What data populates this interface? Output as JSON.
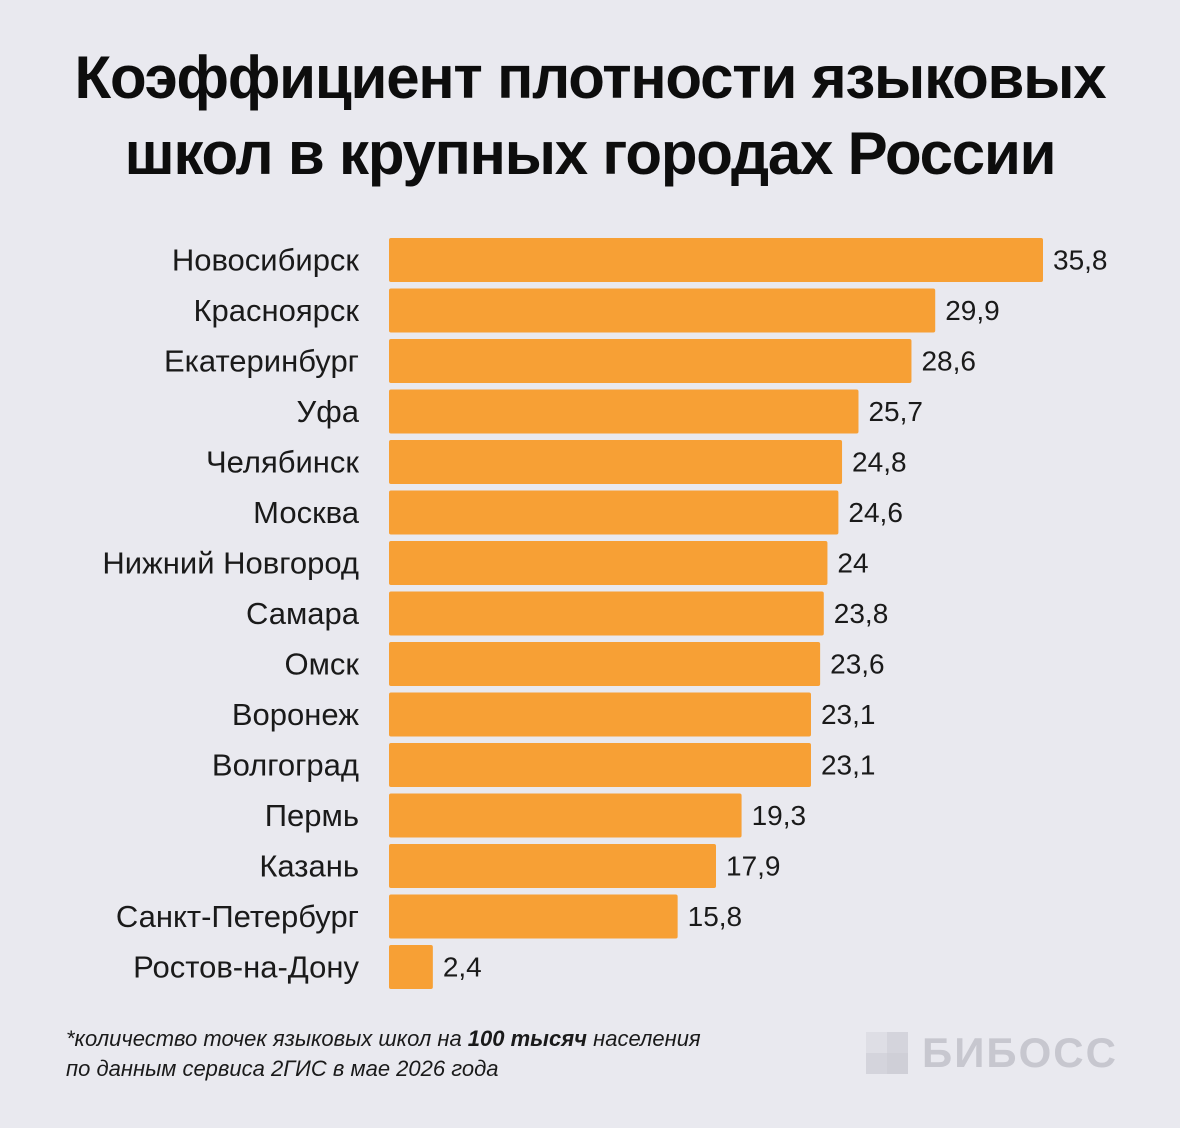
{
  "header": {
    "title_line1": "Коэффициент плотности языковых",
    "title_line2": "школ в крупных городах России"
  },
  "chart_data": {
    "type": "bar",
    "orientation": "horizontal",
    "categories": [
      "Новосибирск",
      "Красноярск",
      "Екатеринбург",
      "Уфа",
      "Челябинск",
      "Москва",
      "Нижний Новгород",
      "Самара",
      "Омск",
      "Воронеж",
      "Волгоград",
      "Пермь",
      "Казань",
      "Санкт-Петербург",
      "Ростов-на-Дону"
    ],
    "values": [
      35.8,
      29.9,
      28.6,
      25.7,
      24.8,
      24.6,
      24,
      23.8,
      23.6,
      23.1,
      23.1,
      19.3,
      17.9,
      15.8,
      2.4
    ],
    "value_labels": [
      "35,8",
      "29,9",
      "28,6",
      "25,7",
      "24,8",
      "24,6",
      "24",
      "23,8",
      "23,6",
      "23,1",
      "23,1",
      "19,3",
      "17,9",
      "15,8",
      "2,4"
    ],
    "title": "Коэффициент плотности языковых школ в крупных городах России",
    "xlabel": "",
    "ylabel": "",
    "xlim": [
      0,
      35.8
    ],
    "grid": false,
    "bar_color": "#f7a035"
  },
  "footnote": {
    "line1_before": "*количество точек языковых школ на ",
    "line1_bold": "100 тысяч",
    "line1_after": " населения",
    "line2": "по данным сервиса 2ГИС в мае 2026 года"
  },
  "logo": {
    "text": "БИБОСС",
    "color": "#c7c7cf"
  }
}
